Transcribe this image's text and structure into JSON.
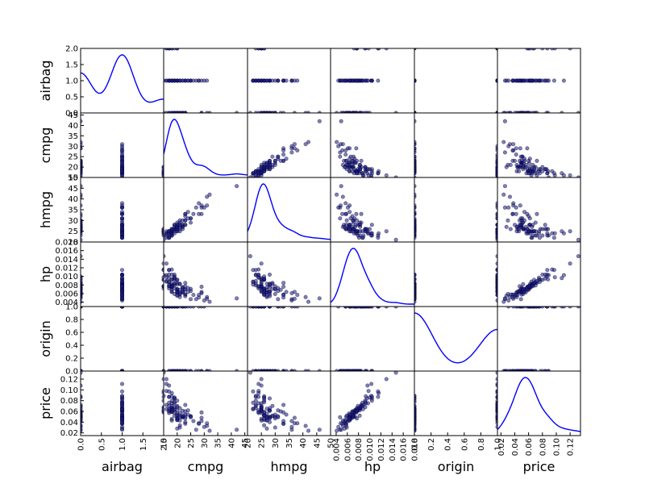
{
  "chart_data": {
    "type": "scatter",
    "title": "",
    "layout": "scatter matrix",
    "diagonal": "kde",
    "point_color": "#1a1a80",
    "kde_color": "#0000ff",
    "variables": [
      "airbag",
      "cmpg",
      "hmpg",
      "hp",
      "origin",
      "price"
    ],
    "ranges": {
      "airbag": [
        0,
        2
      ],
      "cmpg": [
        15,
        46
      ],
      "hmpg": [
        20,
        50
      ],
      "hp": [
        0.003,
        0.018
      ],
      "origin": [
        0,
        1
      ],
      "price": [
        0.015,
        0.135
      ]
    },
    "y_ticks": {
      "airbag": [
        "0.0",
        "0.5",
        "1.0",
        "1.5",
        "2.0"
      ],
      "cmpg": [
        "15",
        "20",
        "25",
        "30",
        "35",
        "40",
        "45"
      ],
      "hmpg": [
        "20",
        "25",
        "30",
        "35",
        "40",
        "45",
        "50"
      ],
      "hp": [
        "0.004",
        "0.006",
        "0.008",
        "0.010",
        "0.012",
        "0.014",
        "0.016",
        "0.018"
      ],
      "origin": [
        "0.0",
        "0.2",
        "0.4",
        "0.6",
        "0.8",
        "1.0"
      ],
      "price": [
        "0.02",
        "0.04",
        "0.06",
        "0.08",
        "0.10",
        "0.12"
      ]
    },
    "x_ticks": {
      "airbag": [
        "0.0",
        "0.5",
        "1.0",
        "1.5",
        "2.0"
      ],
      "cmpg": [
        "15",
        "20",
        "25",
        "30",
        "35",
        "40",
        "45"
      ],
      "hmpg": [
        "20",
        "25",
        "30",
        "35",
        "40",
        "45",
        "50"
      ],
      "hp": [
        "0.004",
        "0.006",
        "0.008",
        "0.010",
        "0.012",
        "0.014",
        "0.016",
        "0.018"
      ],
      "origin": [
        "0.0",
        "0.2",
        "0.4",
        "0.6",
        "0.8",
        "1.0"
      ],
      "price": [
        "0.02",
        "0.04",
        "0.06",
        "0.08",
        "0.10",
        "0.12"
      ]
    },
    "observations": [
      {
        "airbag": 0,
        "origin": 0,
        "cmpg": 29,
        "hmpg": 33,
        "hp": 0.0076,
        "price": 0.058
      },
      {
        "airbag": 1,
        "origin": 0,
        "cmpg": 19,
        "hmpg": 28,
        "hp": 0.0104,
        "price": 0.084
      },
      {
        "airbag": 0,
        "origin": 1,
        "cmpg": 17,
        "hmpg": 25,
        "hp": 0.0096,
        "price": 0.108
      },
      {
        "airbag": 1,
        "origin": 1,
        "cmpg": 16,
        "hmpg": 24,
        "hp": 0.0103,
        "price": 0.111
      },
      {
        "airbag": 0,
        "origin": 0,
        "cmpg": 22,
        "hmpg": 30,
        "hp": 0.0071,
        "price": 0.05
      },
      {
        "airbag": 1,
        "origin": 1,
        "cmpg": 23,
        "hmpg": 33,
        "hp": 0.0085,
        "price": 0.072
      },
      {
        "airbag": 0,
        "origin": 0,
        "cmpg": 20,
        "hmpg": 29,
        "hp": 0.0085,
        "price": 0.07
      },
      {
        "airbag": 2,
        "origin": 1,
        "cmpg": 16,
        "hmpg": 24,
        "hp": 0.0098,
        "price": 0.098
      },
      {
        "airbag": 0,
        "origin": 0,
        "cmpg": 18,
        "hmpg": 26,
        "hp": 0.0093,
        "price": 0.088
      },
      {
        "airbag": 1,
        "origin": 1,
        "cmpg": 24,
        "hmpg": 31,
        "hp": 0.0073,
        "price": 0.062
      },
      {
        "airbag": 2,
        "origin": 0,
        "cmpg": 17,
        "hmpg": 25,
        "hp": 0.0077,
        "price": 0.062
      },
      {
        "airbag": 1,
        "origin": 0,
        "cmpg": 20,
        "hmpg": 28,
        "hp": 0.0082,
        "price": 0.062
      },
      {
        "airbag": 0,
        "origin": 0,
        "cmpg": 20,
        "hmpg": 27,
        "hp": 0.0063,
        "price": 0.044
      },
      {
        "airbag": 1,
        "origin": 0,
        "cmpg": 25,
        "hmpg": 29,
        "hp": 0.0071,
        "price": 0.051
      },
      {
        "airbag": 2,
        "origin": 1,
        "cmpg": 18,
        "hmpg": 24,
        "hp": 0.0116,
        "price": 0.094
      },
      {
        "airbag": 1,
        "origin": 0,
        "cmpg": 20,
        "hmpg": 25,
        "hp": 0.0066,
        "price": 0.046
      },
      {
        "airbag": 1,
        "origin": 1,
        "cmpg": 19,
        "hmpg": 28,
        "hp": 0.0079,
        "price": 0.062
      },
      {
        "airbag": 1,
        "origin": 0,
        "cmpg": 23,
        "hmpg": 33,
        "hp": 0.0058,
        "price": 0.037
      },
      {
        "airbag": 0,
        "origin": 0,
        "cmpg": 21,
        "hmpg": 29,
        "hp": 0.0082,
        "price": 0.052
      },
      {
        "airbag": 2,
        "origin": 1,
        "cmpg": 20,
        "hmpg": 25,
        "hp": 0.0092,
        "price": 0.068
      },
      {
        "airbag": 0,
        "origin": 0,
        "cmpg": 31,
        "hmpg": 41,
        "hp": 0.0052,
        "price": 0.033
      },
      {
        "airbag": 1,
        "origin": 1,
        "cmpg": 25,
        "hmpg": 31,
        "hp": 0.0066,
        "price": 0.051
      },
      {
        "airbag": 2,
        "origin": 1,
        "cmpg": 16,
        "hmpg": 25,
        "hp": 0.013,
        "price": 0.12
      },
      {
        "airbag": 1,
        "origin": 0,
        "cmpg": 23,
        "hmpg": 30,
        "hp": 0.007,
        "price": 0.054
      },
      {
        "airbag": 0,
        "origin": 0,
        "cmpg": 22,
        "hmpg": 27,
        "hp": 0.0074,
        "price": 0.05
      },
      {
        "airbag": 1,
        "origin": 0,
        "cmpg": 18,
        "hmpg": 23,
        "hp": 0.0104,
        "price": 0.08
      },
      {
        "airbag": 0,
        "origin": 0,
        "cmpg": 19,
        "hmpg": 27,
        "hp": 0.0083,
        "price": 0.065
      },
      {
        "airbag": 1,
        "origin": 1,
        "cmpg": 21,
        "hmpg": 28,
        "hp": 0.0083,
        "price": 0.066
      },
      {
        "airbag": 0,
        "origin": 1,
        "cmpg": 19,
        "hmpg": 26,
        "hp": 0.01,
        "price": 0.086
      },
      {
        "airbag": 1,
        "origin": 0,
        "cmpg": 29,
        "hmpg": 36,
        "hp": 0.0061,
        "price": 0.042
      },
      {
        "airbag": 1,
        "origin": 1,
        "cmpg": 22,
        "hmpg": 28,
        "hp": 0.0064,
        "price": 0.049
      },
      {
        "airbag": 1,
        "origin": 0,
        "cmpg": 15,
        "hmpg": 23,
        "hp": 0.0103,
        "price": 0.089
      },
      {
        "airbag": 0,
        "origin": 1,
        "cmpg": 17,
        "hmpg": 24,
        "hp": 0.0072,
        "price": 0.057
      },
      {
        "airbag": 1,
        "origin": 0,
        "cmpg": 27,
        "hmpg": 36,
        "hp": 0.0047,
        "price": 0.026
      },
      {
        "airbag": 0,
        "origin": 0,
        "cmpg": 22,
        "hmpg": 27,
        "hp": 0.0063,
        "price": 0.05
      },
      {
        "airbag": 1,
        "origin": 1,
        "cmpg": 18,
        "hmpg": 25,
        "hp": 0.0093,
        "price": 0.075
      },
      {
        "airbag": 0,
        "origin": 0,
        "cmpg": 23,
        "hmpg": 28,
        "hp": 0.0058,
        "price": 0.05
      },
      {
        "airbag": 1,
        "origin": 0,
        "cmpg": 18,
        "hmpg": 24,
        "hp": 0.0076,
        "price": 0.059
      },
      {
        "airbag": 0,
        "origin": 0,
        "cmpg": 23,
        "hmpg": 30,
        "hp": 0.0077,
        "price": 0.047
      },
      {
        "airbag": 0,
        "origin": 0,
        "cmpg": 21,
        "hmpg": 30,
        "hp": 0.0059,
        "price": 0.03
      },
      {
        "airbag": 1,
        "origin": 0,
        "cmpg": 21,
        "hmpg": 27,
        "hp": 0.0052,
        "price": 0.043
      },
      {
        "airbag": 0,
        "origin": 1,
        "cmpg": 22,
        "hmpg": 28,
        "hp": 0.0075,
        "price": 0.061
      },
      {
        "airbag": 1,
        "origin": 0,
        "cmpg": 25,
        "hmpg": 31,
        "hp": 0.0047,
        "price": 0.049
      },
      {
        "airbag": 0,
        "origin": 1,
        "cmpg": 23,
        "hmpg": 32,
        "hp": 0.0069,
        "price": 0.06
      },
      {
        "airbag": 0,
        "origin": 1,
        "cmpg": 29,
        "hmpg": 37,
        "hp": 0.0064,
        "price": 0.048
      },
      {
        "airbag": 1,
        "origin": 0,
        "cmpg": 24,
        "hmpg": 34,
        "hp": 0.0064,
        "price": 0.054
      },
      {
        "airbag": 0,
        "origin": 0,
        "cmpg": 20,
        "hmpg": 27,
        "hp": 0.0063,
        "price": 0.056
      },
      {
        "airbag": 1,
        "origin": 1,
        "cmpg": 30,
        "hmpg": 36,
        "hp": 0.0044,
        "price": 0.031
      },
      {
        "airbag": 1,
        "origin": 0,
        "cmpg": 20,
        "hmpg": 27,
        "hp": 0.0069,
        "price": 0.048
      },
      {
        "airbag": 0,
        "origin": 0,
        "cmpg": 19,
        "hmpg": 26,
        "hp": 0.0059,
        "price": 0.052
      },
      {
        "airbag": 2,
        "origin": 1,
        "cmpg": 17,
        "hmpg": 23,
        "hp": 0.0115,
        "price": 0.087
      },
      {
        "airbag": 2,
        "origin": 1,
        "cmpg": 20,
        "hmpg": 26,
        "hp": 0.0092,
        "price": 0.08
      },
      {
        "airbag": 1,
        "origin": 0,
        "cmpg": 18,
        "hmpg": 23,
        "hp": 0.0083,
        "price": 0.066
      },
      {
        "airbag": 1,
        "origin": 1,
        "cmpg": 17,
        "hmpg": 22,
        "hp": 0.0087,
        "price": 0.076
      },
      {
        "airbag": 0,
        "origin": 0,
        "cmpg": 18,
        "hmpg": 26,
        "hp": 0.0069,
        "price": 0.059
      },
      {
        "airbag": 1,
        "origin": 0,
        "cmpg": 17,
        "hmpg": 22,
        "hp": 0.0081,
        "price": 0.065
      },
      {
        "airbag": 1,
        "origin": 1,
        "cmpg": 20,
        "hmpg": 28,
        "hp": 0.0065,
        "price": 0.047
      },
      {
        "airbag": 0,
        "origin": 0,
        "cmpg": 20,
        "hmpg": 26,
        "hp": 0.0071,
        "price": 0.053
      },
      {
        "airbag": 1,
        "origin": 0,
        "cmpg": 31,
        "hmpg": 37,
        "hp": 0.0048,
        "price": 0.038
      },
      {
        "airbag": 1,
        "origin": 1,
        "cmpg": 22,
        "hmpg": 26,
        "hp": 0.0064,
        "price": 0.053
      },
      {
        "airbag": 1,
        "origin": 0,
        "cmpg": 18,
        "hmpg": 23,
        "hp": 0.0079,
        "price": 0.07
      },
      {
        "airbag": 1,
        "origin": 1,
        "cmpg": 28,
        "hmpg": 38,
        "hp": 0.0057,
        "price": 0.038
      },
      {
        "airbag": 1,
        "origin": 0,
        "cmpg": 19,
        "hmpg": 26,
        "hp": 0.0092,
        "price": 0.077
      },
      {
        "airbag": 0,
        "origin": 0,
        "cmpg": 21,
        "hmpg": 26,
        "hp": 0.0058,
        "price": 0.034
      },
      {
        "airbag": 2,
        "origin": 1,
        "cmpg": 18,
        "hmpg": 25,
        "hp": 0.0077,
        "price": 0.066
      },
      {
        "airbag": 0,
        "origin": 0,
        "cmpg": 21,
        "hmpg": 28,
        "hp": 0.0063,
        "price": 0.049
      },
      {
        "airbag": 1,
        "origin": 1,
        "cmpg": 17,
        "hmpg": 24,
        "hp": 0.0104,
        "price": 0.087
      },
      {
        "airbag": 1,
        "origin": 0,
        "cmpg": 18,
        "hmpg": 25,
        "hp": 0.0075,
        "price": 0.063
      },
      {
        "airbag": 0,
        "origin": 0,
        "cmpg": 18,
        "hmpg": 25,
        "hp": 0.0064,
        "price": 0.043
      },
      {
        "airbag": 1,
        "origin": 1,
        "cmpg": 17,
        "hmpg": 22,
        "hp": 0.0115,
        "price": 0.097
      },
      {
        "airbag": 0,
        "origin": 0,
        "cmpg": 20,
        "hmpg": 26,
        "hp": 0.007,
        "price": 0.052
      },
      {
        "airbag": 1,
        "origin": 0,
        "cmpg": 19,
        "hmpg": 26,
        "hp": 0.0095,
        "price": 0.084
      },
      {
        "airbag": 1,
        "origin": 0,
        "cmpg": 20,
        "hmpg": 27,
        "hp": 0.0055,
        "price": 0.028
      },
      {
        "airbag": 0,
        "origin": 0,
        "cmpg": 23,
        "hmpg": 28,
        "hp": 0.0054,
        "price": 0.04
      },
      {
        "airbag": 1,
        "origin": 1,
        "cmpg": 17,
        "hmpg": 25,
        "hp": 0.0087,
        "price": 0.07
      },
      {
        "airbag": 2,
        "origin": 0,
        "cmpg": 19,
        "hmpg": 26,
        "hp": 0.0072,
        "price": 0.058
      },
      {
        "airbag": 1,
        "origin": 0,
        "cmpg": 18,
        "hmpg": 25,
        "hp": 0.0079,
        "price": 0.066
      },
      {
        "airbag": 0,
        "origin": 1,
        "cmpg": 16,
        "hmpg": 23,
        "hp": 0.0089,
        "price": 0.072
      },
      {
        "airbag": 1,
        "origin": 0,
        "cmpg": 28,
        "hmpg": 33,
        "hp": 0.0051,
        "price": 0.037
      },
      {
        "airbag": 1,
        "origin": 1,
        "cmpg": 18,
        "hmpg": 25,
        "hp": 0.0075,
        "price": 0.061
      },
      {
        "airbag": 0,
        "origin": 0,
        "cmpg": 42,
        "hmpg": 46,
        "hp": 0.0049,
        "price": 0.026
      },
      {
        "airbag": 1,
        "origin": 1,
        "cmpg": 20,
        "hmpg": 26,
        "hp": 0.0057,
        "price": 0.044
      },
      {
        "airbag": 1,
        "origin": 0,
        "cmpg": 18,
        "hmpg": 24,
        "hp": 0.0077,
        "price": 0.062
      },
      {
        "airbag": 0,
        "origin": 1,
        "cmpg": 19,
        "hmpg": 25,
        "hp": 0.0083,
        "price": 0.068
      },
      {
        "airbag": 1,
        "origin": 0,
        "cmpg": 21,
        "hmpg": 25,
        "hp": 0.0069,
        "price": 0.057
      },
      {
        "airbag": 1,
        "origin": 1,
        "cmpg": 26,
        "hmpg": 33,
        "hp": 0.0057,
        "price": 0.042
      },
      {
        "airbag": 2,
        "origin": 1,
        "cmpg": 17,
        "hmpg": 25,
        "hp": 0.0077,
        "price": 0.06
      },
      {
        "airbag": 0,
        "origin": 0,
        "cmpg": 32,
        "hmpg": 42,
        "hp": 0.0041,
        "price": 0.024
      },
      {
        "airbag": 1,
        "origin": 1,
        "cmpg": 19,
        "hmpg": 24,
        "hp": 0.0097,
        "price": 0.075
      },
      {
        "airbag": 1,
        "origin": 0,
        "cmpg": 18,
        "hmpg": 26,
        "hp": 0.0064,
        "price": 0.046
      },
      {
        "airbag": 0,
        "origin": 1,
        "cmpg": 15,
        "hmpg": 21,
        "hp": 0.0147,
        "price": 0.132
      },
      {
        "airbag": 1,
        "origin": 1,
        "cmpg": 16,
        "hmpg": 22,
        "hp": 0.0088,
        "price": 0.064
      }
    ]
  }
}
